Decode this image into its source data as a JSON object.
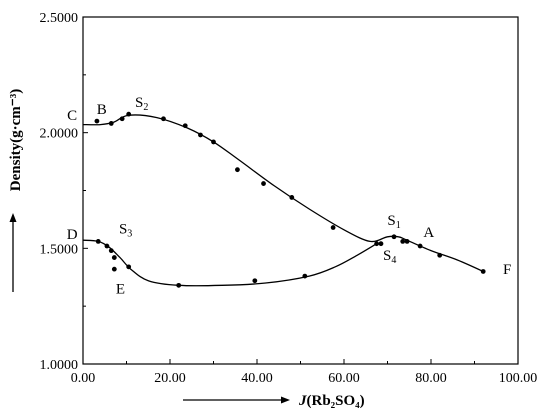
{
  "chart_data": {
    "type": "scatter",
    "xlabel_italic": "J",
    "xlabel_rest": "(Rb₂SO₄)",
    "ylabel": "Density(g·cm⁻³)",
    "xlim": [
      0,
      100
    ],
    "ylim": [
      1.0,
      2.5
    ],
    "xticks": [
      "0.00",
      "20.00",
      "40.00",
      "60.00",
      "80.00",
      "100.00"
    ],
    "xtick_values": [
      0,
      20,
      40,
      60,
      80,
      100
    ],
    "yticks": [
      "1.0000",
      "1.5000",
      "2.0000",
      "2.5000"
    ],
    "ytick_values": [
      1.0,
      1.5,
      2.0,
      2.5
    ],
    "grid": false,
    "series": [
      {
        "points": [
          [
            3.2,
            2.05
          ],
          [
            6.5,
            2.04
          ],
          [
            9,
            2.06
          ],
          [
            10.5,
            2.08
          ],
          [
            18.5,
            2.06
          ],
          [
            23.5,
            2.03
          ],
          [
            27,
            1.99
          ],
          [
            30,
            1.96
          ],
          [
            35.5,
            1.84
          ],
          [
            41.5,
            1.78
          ],
          [
            48,
            1.72
          ],
          [
            57.5,
            1.59
          ],
          [
            68.5,
            1.52
          ],
          [
            71.5,
            1.55
          ],
          [
            73.5,
            1.53
          ],
          [
            74.5,
            1.53
          ],
          [
            77.5,
            1.51
          ],
          [
            82,
            1.47
          ],
          [
            92,
            1.4
          ]
        ],
        "curve": [
          [
            0,
            2.035
          ],
          [
            4,
            2.035
          ],
          [
            7,
            2.045
          ],
          [
            10.5,
            2.075
          ],
          [
            17,
            2.065
          ],
          [
            24,
            2.02
          ],
          [
            30,
            1.96
          ],
          [
            36,
            1.88
          ],
          [
            44,
            1.77
          ],
          [
            52,
            1.67
          ],
          [
            60,
            1.58
          ],
          [
            66,
            1.53
          ],
          [
            70,
            1.55
          ],
          [
            72.5,
            1.55
          ],
          [
            74.5,
            1.535
          ],
          [
            80,
            1.49
          ],
          [
            86,
            1.45
          ],
          [
            92,
            1.4
          ]
        ]
      },
      {
        "points": [
          [
            3.5,
            1.53
          ],
          [
            5.5,
            1.51
          ],
          [
            6.5,
            1.49
          ],
          [
            7.2,
            1.46
          ],
          [
            7.2,
            1.41
          ],
          [
            10.5,
            1.42
          ],
          [
            22,
            1.34
          ],
          [
            39.5,
            1.36
          ],
          [
            51,
            1.38
          ],
          [
            67.5,
            1.52
          ]
        ],
        "curve": [
          [
            0,
            1.535
          ],
          [
            3.5,
            1.53
          ],
          [
            6,
            1.505
          ],
          [
            8.5,
            1.46
          ],
          [
            11,
            1.41
          ],
          [
            15,
            1.36
          ],
          [
            22,
            1.34
          ],
          [
            32,
            1.34
          ],
          [
            42,
            1.35
          ],
          [
            52,
            1.38
          ],
          [
            58,
            1.42
          ],
          [
            63,
            1.47
          ],
          [
            67.5,
            1.52
          ]
        ]
      }
    ],
    "annotations": [
      {
        "text": "B",
        "x": 4.3,
        "y": 2.08
      },
      {
        "text": "S",
        "sub": "2",
        "x": 13.5,
        "y": 2.11
      },
      {
        "text": "C",
        "x": -2.5,
        "y": 2.055
      },
      {
        "text": "D",
        "x": -2.5,
        "y": 1.54
      },
      {
        "text": "S",
        "sub": "3",
        "x": 9.8,
        "y": 1.565
      },
      {
        "text": "E",
        "x": 8.6,
        "y": 1.305
      },
      {
        "text": "S",
        "sub": "1",
        "x": 71.5,
        "y": 1.6
      },
      {
        "text": "S",
        "sub": "4",
        "x": 70.5,
        "y": 1.45
      },
      {
        "text": "A",
        "x": 79.5,
        "y": 1.55
      },
      {
        "text": "F",
        "x": 97.5,
        "y": 1.39
      }
    ]
  }
}
